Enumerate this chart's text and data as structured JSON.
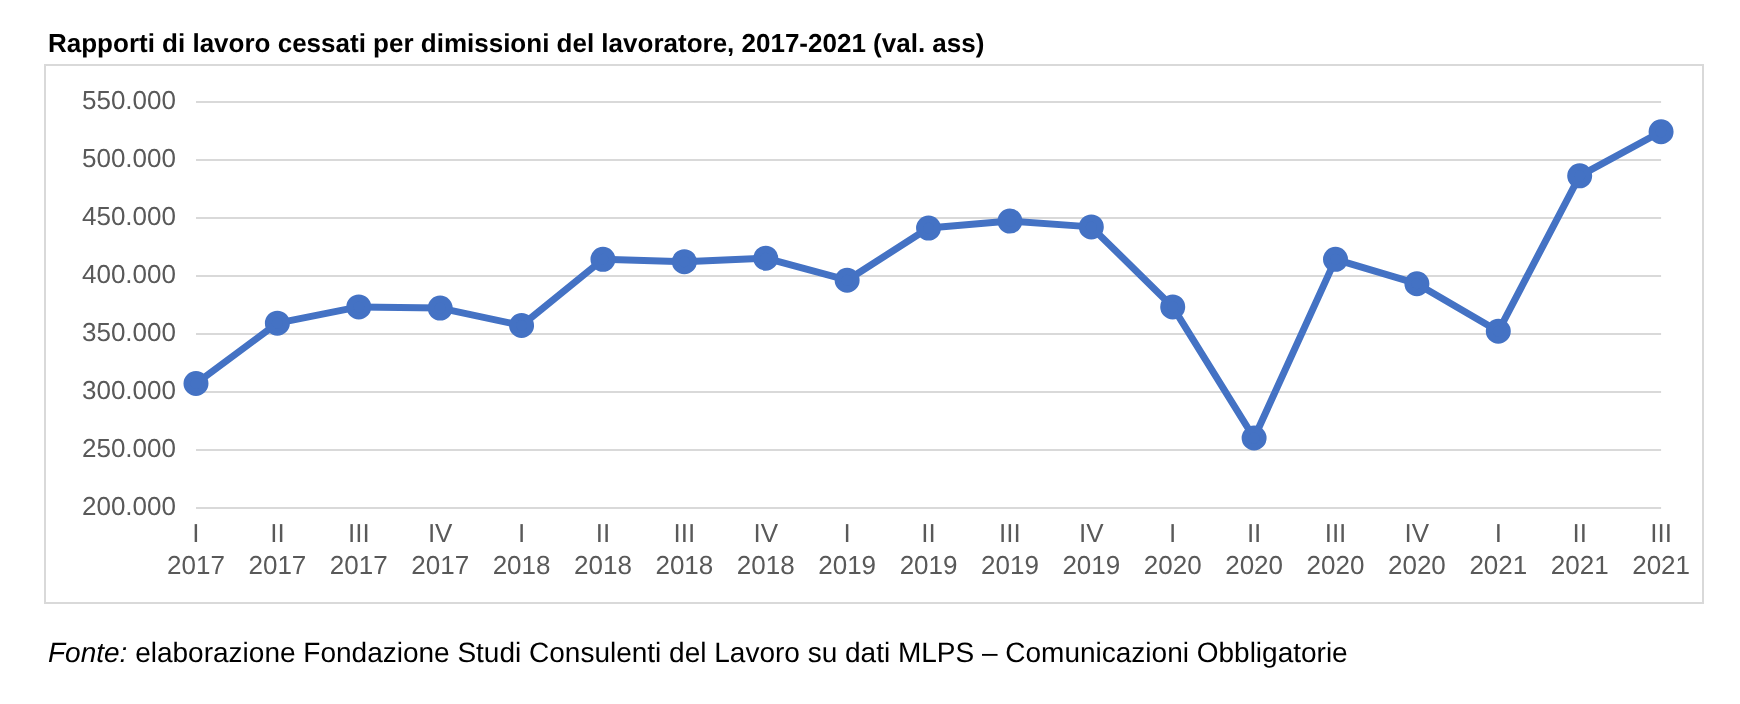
{
  "chart_data": {
    "type": "line",
    "title": "Rapporti di lavoro cessati per dimissioni del lavoratore, 2017-2021 (val. ass)",
    "categories": [
      "I 2017",
      "II 2017",
      "III 2017",
      "IV 2017",
      "I 2018",
      "II 2018",
      "III 2018",
      "IV 2018",
      "I 2019",
      "II 2019",
      "III 2019",
      "IV 2019",
      "I 2020",
      "II 2020",
      "III 2020",
      "IV 2020",
      "I 2021",
      "II 2021",
      "III 2021"
    ],
    "series": [
      {
        "color": "#4472c4",
        "values": [
          307000,
          359000,
          373000,
          372000,
          357000,
          414000,
          412000,
          415000,
          396000,
          441000,
          447000,
          442000,
          373000,
          260000,
          414000,
          393000,
          352000,
          486000,
          524000
        ]
      }
    ],
    "ylim": [
      200000,
      550000
    ],
    "yticks": [
      {
        "value": 200000,
        "label": "200.000"
      },
      {
        "value": 250000,
        "label": "250.000"
      },
      {
        "value": 300000,
        "label": "300.000"
      },
      {
        "value": 350000,
        "label": "350.000"
      },
      {
        "value": 400000,
        "label": "400.000"
      },
      {
        "value": 450000,
        "label": "450.000"
      },
      {
        "value": 500000,
        "label": "500.000"
      },
      {
        "value": 550000,
        "label": "550.000"
      }
    ],
    "grid": "y",
    "legend": false,
    "marker": "circle",
    "line_style": "solid",
    "annotations": [
      "Fonte: elaborazione Fondazione Studi Consulenti del Lavoro su dati MLPS – Comunicazioni Obbligatorie"
    ]
  }
}
